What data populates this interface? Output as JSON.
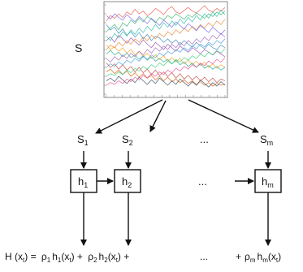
{
  "colors": {
    "series": [
      "#e74c3c",
      "#27ae60",
      "#2980b9",
      "#8e44ad",
      "#f39c12",
      "#16a085",
      "#c0392b",
      "#d35400",
      "#2c3e50",
      "#1abc9c",
      "#e67e22",
      "#9b59b6",
      "#3498db",
      "#2ecc71",
      "#e84393",
      "#6c5ce7"
    ]
  },
  "diagram": {
    "matrix_label": "S",
    "streams": [
      {
        "letter": "S",
        "sub": "1"
      },
      {
        "letter": "S",
        "sub": "2"
      },
      {
        "letter": "S",
        "sub": "m"
      }
    ],
    "models": [
      {
        "letter": "h",
        "sub": "1"
      },
      {
        "letter": "h",
        "sub": "2"
      },
      {
        "letter": "h",
        "sub": "m"
      }
    ],
    "ellipsis": "...",
    "formula": {
      "lhs": "H (x",
      "lhs_sub": "t",
      "lhs_close": ") =",
      "term1_rho": "ρ",
      "term1_rho_sub": "1",
      "term1_h": "h",
      "term1_h_sub": "1",
      "term1_x": "(x",
      "term1_x_sub": "t",
      "term1_close": ") +",
      "term2_rho": "ρ",
      "term2_rho_sub": "2",
      "term2_h": "h",
      "term2_h_sub": "2",
      "term2_x": "(x",
      "term2_x_sub": "t",
      "term2_close": ") +",
      "ellipsis": "...",
      "termm_plus": "+",
      "termm_rho": "ρ",
      "termm_rho_sub": "m",
      "termm_h": "h",
      "termm_h_sub": "m",
      "termm_x": "(x",
      "termm_x_sub": "t",
      "termm_close": ")"
    }
  },
  "chart_data": {
    "type": "line",
    "x": [
      0,
      1,
      2,
      3,
      4,
      5,
      6,
      7,
      8,
      9,
      10,
      11,
      12,
      13,
      14,
      15,
      16,
      17,
      18,
      19,
      20,
      21,
      22,
      23,
      24,
      25,
      26,
      27,
      28,
      29
    ],
    "series": [
      {
        "values": [
          0.82,
          0.88,
          0.85,
          0.9,
          0.86,
          0.92,
          0.89,
          0.95,
          0.9,
          0.93,
          0.88,
          0.91,
          0.96,
          0.93,
          0.89,
          0.95,
          0.98,
          0.92,
          0.9,
          0.94,
          0.97,
          0.93,
          0.91,
          0.95,
          0.99,
          0.94,
          0.92,
          0.96,
          0.93,
          0.97
        ]
      },
      {
        "values": [
          0.7,
          0.74,
          0.78,
          0.72,
          0.8,
          0.76,
          0.83,
          0.79,
          0.85,
          0.81,
          0.87,
          0.84,
          0.8,
          0.86,
          0.83,
          0.88,
          0.85,
          0.9,
          0.87,
          0.84,
          0.89,
          0.86,
          0.91,
          0.88,
          0.85,
          0.9,
          0.87,
          0.92,
          0.89,
          0.93
        ]
      },
      {
        "values": [
          0.78,
          0.72,
          0.75,
          0.68,
          0.73,
          0.66,
          0.7,
          0.64,
          0.69,
          0.62,
          0.67,
          0.6,
          0.65,
          0.63,
          0.58,
          0.62,
          0.57,
          0.61,
          0.55,
          0.6,
          0.56,
          0.53,
          0.58,
          0.54,
          0.51,
          0.56,
          0.52,
          0.5,
          0.55,
          0.52
        ]
      },
      {
        "values": [
          0.6,
          0.64,
          0.58,
          0.66,
          0.62,
          0.57,
          0.63,
          0.59,
          0.55,
          0.61,
          0.56,
          0.52,
          0.58,
          0.54,
          0.5,
          0.56,
          0.52,
          0.48,
          0.54,
          0.5,
          0.47,
          0.52,
          0.49,
          0.45,
          0.5,
          0.47,
          0.44,
          0.48,
          0.45,
          0.42
        ]
      },
      {
        "values": [
          0.55,
          0.5,
          0.53,
          0.48,
          0.52,
          0.46,
          0.5,
          0.44,
          0.48,
          0.42,
          0.46,
          0.4,
          0.44,
          0.39,
          0.43,
          0.37,
          0.41,
          0.36,
          0.4,
          0.34,
          0.38,
          0.33,
          0.37,
          0.32,
          0.36,
          0.3,
          0.34,
          0.29,
          0.33,
          0.3
        ]
      },
      {
        "values": [
          0.45,
          0.49,
          0.44,
          0.47,
          0.42,
          0.46,
          0.41,
          0.44,
          0.39,
          0.43,
          0.38,
          0.42,
          0.37,
          0.4,
          0.36,
          0.39,
          0.34,
          0.38,
          0.33,
          0.36,
          0.31,
          0.35,
          0.3,
          0.34,
          0.29,
          0.32,
          0.28,
          0.31,
          0.27,
          0.3
        ]
      },
      {
        "values": [
          0.35,
          0.3,
          0.34,
          0.28,
          0.33,
          0.27,
          0.31,
          0.25,
          0.3,
          0.24,
          0.28,
          0.22,
          0.27,
          0.21,
          0.25,
          0.2,
          0.24,
          0.18,
          0.23,
          0.17,
          0.21,
          0.16,
          0.2,
          0.15,
          0.19,
          0.14,
          0.18,
          0.13,
          0.17,
          0.15
        ]
      },
      {
        "values": [
          0.25,
          0.28,
          0.23,
          0.27,
          0.22,
          0.26,
          0.2,
          0.24,
          0.19,
          0.23,
          0.18,
          0.21,
          0.16,
          0.2,
          0.15,
          0.19,
          0.14,
          0.17,
          0.13,
          0.16,
          0.12,
          0.15,
          0.11,
          0.14,
          0.1,
          0.13,
          0.09,
          0.12,
          0.1,
          0.11
        ]
      },
      {
        "values": [
          0.15,
          0.18,
          0.14,
          0.2,
          0.16,
          0.12,
          0.17,
          0.13,
          0.19,
          0.15,
          0.11,
          0.16,
          0.12,
          0.18,
          0.14,
          0.1,
          0.15,
          0.11,
          0.17,
          0.13,
          0.09,
          0.14,
          0.1,
          0.16,
          0.12,
          0.08,
          0.13,
          0.09,
          0.14,
          0.1
        ]
      },
      {
        "values": [
          0.65,
          0.6,
          0.68,
          0.63,
          0.7,
          0.65,
          0.72,
          0.67,
          0.74,
          0.69,
          0.76,
          0.71,
          0.78,
          0.73,
          0.8,
          0.75,
          0.82,
          0.77,
          0.84,
          0.79,
          0.86,
          0.81,
          0.88,
          0.83,
          0.9,
          0.85,
          0.92,
          0.87,
          0.94,
          0.89
        ]
      },
      {
        "values": [
          0.5,
          0.55,
          0.52,
          0.58,
          0.54,
          0.6,
          0.56,
          0.62,
          0.58,
          0.64,
          0.6,
          0.66,
          0.62,
          0.68,
          0.64,
          0.7,
          0.66,
          0.72,
          0.68,
          0.74,
          0.7,
          0.76,
          0.72,
          0.78,
          0.74,
          0.8,
          0.76,
          0.82,
          0.78,
          0.84
        ]
      },
      {
        "values": [
          0.4,
          0.36,
          0.42,
          0.38,
          0.44,
          0.4,
          0.46,
          0.42,
          0.48,
          0.44,
          0.5,
          0.46,
          0.52,
          0.48,
          0.54,
          0.5,
          0.56,
          0.52,
          0.58,
          0.54,
          0.6,
          0.56,
          0.62,
          0.58,
          0.64,
          0.6,
          0.66,
          0.62,
          0.68,
          0.64
        ]
      },
      {
        "values": [
          0.3,
          0.34,
          0.31,
          0.36,
          0.33,
          0.38,
          0.35,
          0.4,
          0.37,
          0.42,
          0.39,
          0.44,
          0.41,
          0.46,
          0.43,
          0.48,
          0.45,
          0.5,
          0.47,
          0.52,
          0.49,
          0.54,
          0.51,
          0.56,
          0.53,
          0.58,
          0.55,
          0.6,
          0.57,
          0.62
        ]
      },
      {
        "values": [
          0.2,
          0.23,
          0.21,
          0.25,
          0.22,
          0.27,
          0.24,
          0.29,
          0.26,
          0.31,
          0.28,
          0.33,
          0.3,
          0.35,
          0.32,
          0.37,
          0.34,
          0.39,
          0.36,
          0.41,
          0.38,
          0.43,
          0.4,
          0.45,
          0.42,
          0.47,
          0.44,
          0.49,
          0.46,
          0.51
        ]
      },
      {
        "values": [
          0.1,
          0.13,
          0.11,
          0.15,
          0.12,
          0.17,
          0.14,
          0.19,
          0.16,
          0.21,
          0.18,
          0.23,
          0.2,
          0.25,
          0.22,
          0.27,
          0.24,
          0.29,
          0.26,
          0.31,
          0.28,
          0.33,
          0.3,
          0.35,
          0.32,
          0.37,
          0.34,
          0.39,
          0.36,
          0.41
        ]
      },
      {
        "values": [
          0.88,
          0.84,
          0.9,
          0.86,
          0.83,
          0.89,
          0.85,
          0.81,
          0.87,
          0.83,
          0.79,
          0.85,
          0.81,
          0.77,
          0.83,
          0.79,
          0.75,
          0.81,
          0.77,
          0.73,
          0.79,
          0.75,
          0.71,
          0.77,
          0.73,
          0.69,
          0.75,
          0.71,
          0.67,
          0.72
        ]
      }
    ],
    "xlim": [
      0,
      29
    ],
    "ylim": [
      0,
      1
    ],
    "grid": false
  }
}
